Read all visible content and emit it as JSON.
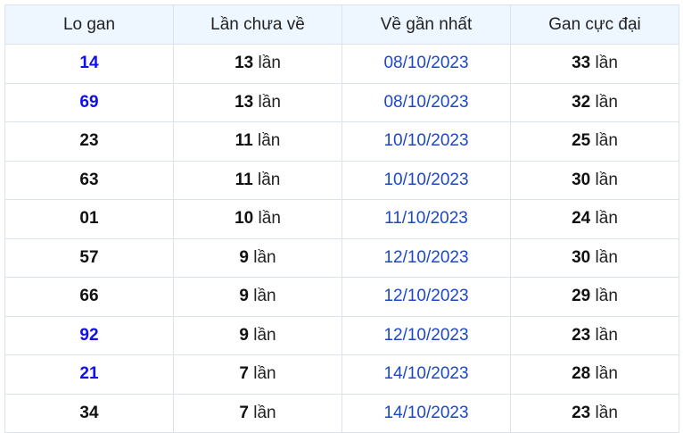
{
  "headers": [
    "Lo gan",
    "Lần chưa về",
    "Về gần nhất",
    "Gan cực đại"
  ],
  "unit": "lần",
  "colors": {
    "highlight_number": "#1010ee",
    "date": "#1c48c8",
    "header_bg": "#eef6ff"
  },
  "rows": [
    {
      "number": "14",
      "highlight": true,
      "missed": "13",
      "last": "08/10/2023",
      "max": "33"
    },
    {
      "number": "69",
      "highlight": true,
      "missed": "13",
      "last": "08/10/2023",
      "max": "32"
    },
    {
      "number": "23",
      "highlight": false,
      "missed": "11",
      "last": "10/10/2023",
      "max": "25"
    },
    {
      "number": "63",
      "highlight": false,
      "missed": "11",
      "last": "10/10/2023",
      "max": "30"
    },
    {
      "number": "01",
      "highlight": false,
      "missed": "10",
      "last": "11/10/2023",
      "max": "24"
    },
    {
      "number": "57",
      "highlight": false,
      "missed": "9",
      "last": "12/10/2023",
      "max": "30"
    },
    {
      "number": "66",
      "highlight": false,
      "missed": "9",
      "last": "12/10/2023",
      "max": "29"
    },
    {
      "number": "92",
      "highlight": true,
      "missed": "9",
      "last": "12/10/2023",
      "max": "23"
    },
    {
      "number": "21",
      "highlight": true,
      "missed": "7",
      "last": "14/10/2023",
      "max": "28"
    },
    {
      "number": "34",
      "highlight": false,
      "missed": "7",
      "last": "14/10/2023",
      "max": "23"
    }
  ]
}
